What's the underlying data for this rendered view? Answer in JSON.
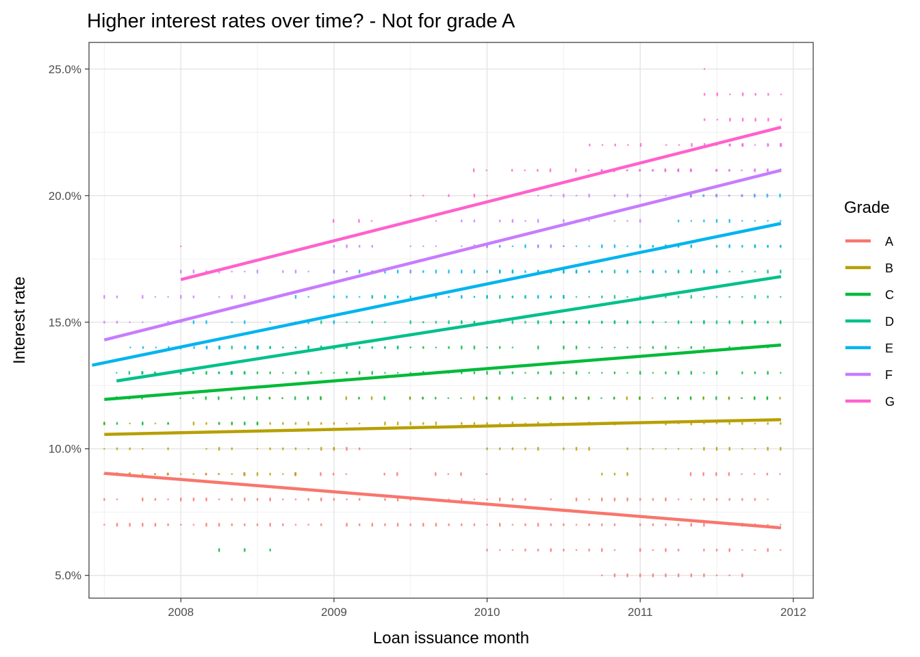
{
  "chart_data": {
    "type": "scatter",
    "title": "Higher interest rates over time? - Not for grade A",
    "xlabel": "Loan issuance month",
    "ylabel": "Interest rate",
    "xlim": [
      2007.4,
      2012.13
    ],
    "ylim": [
      0.041,
      0.2605
    ],
    "x_ticks": [
      {
        "value": 2008,
        "label": "2008"
      },
      {
        "value": 2009,
        "label": "2009"
      },
      {
        "value": 2010,
        "label": "2010"
      },
      {
        "value": 2011,
        "label": "2011"
      },
      {
        "value": 2012,
        "label": "2012"
      }
    ],
    "y_ticks": [
      {
        "value": 0.05,
        "label": "5.0%"
      },
      {
        "value": 0.1,
        "label": "10.0%"
      },
      {
        "value": 0.15,
        "label": "15.0%"
      },
      {
        "value": 0.2,
        "label": "20.0%"
      },
      {
        "value": 0.25,
        "label": "25.0%"
      }
    ],
    "grid": true,
    "legend": {
      "title": "Grade",
      "position": "right"
    },
    "series": [
      {
        "name": "A",
        "color": "#F8766D",
        "trend": {
          "x": [
            2007.5,
            2011.92
          ],
          "y": [
            0.0903,
            0.0688
          ]
        },
        "point_bands": [
          {
            "y": 0.07,
            "x_start": 2007.5,
            "x_end": 2011.92,
            "density": 0.95
          },
          {
            "y": 0.08,
            "x_start": 2007.5,
            "x_end": 2011.92,
            "density": 0.85
          },
          {
            "y": 0.09,
            "x_start": 2007.58,
            "x_end": 2010.0,
            "density": 0.7
          },
          {
            "y": 0.09,
            "x_start": 2011.33,
            "x_end": 2011.92,
            "density": 0.9
          },
          {
            "y": 0.06,
            "x_start": 2010.0,
            "x_end": 2011.92,
            "density": 0.95
          },
          {
            "y": 0.05,
            "x_start": 2010.75,
            "x_end": 2011.67,
            "density": 1.0
          },
          {
            "y": 0.1,
            "x_start": 2009.0,
            "x_end": 2009.5,
            "density": 0.6
          }
        ]
      },
      {
        "name": "B",
        "color": "#B79F00",
        "trend": {
          "x": [
            2007.5,
            2011.92
          ],
          "y": [
            0.1057,
            0.1115
          ]
        },
        "point_bands": [
          {
            "y": 0.09,
            "x_start": 2007.5,
            "x_end": 2008.75,
            "density": 0.9
          },
          {
            "y": 0.09,
            "x_start": 2010.75,
            "x_end": 2010.92,
            "density": 1.0
          },
          {
            "y": 0.1,
            "x_start": 2007.5,
            "x_end": 2009.0,
            "density": 0.8
          },
          {
            "y": 0.1,
            "x_start": 2010.0,
            "x_end": 2011.92,
            "density": 0.95
          },
          {
            "y": 0.11,
            "x_start": 2007.5,
            "x_end": 2011.92,
            "density": 0.9
          },
          {
            "y": 0.12,
            "x_start": 2008.58,
            "x_end": 2010.08,
            "density": 0.8
          },
          {
            "y": 0.12,
            "x_start": 2010.33,
            "x_end": 2011.92,
            "density": 0.9
          }
        ]
      },
      {
        "name": "C",
        "color": "#00BA38",
        "trend": {
          "x": [
            2007.5,
            2011.92
          ],
          "y": [
            0.1195,
            0.141
          ]
        },
        "point_bands": [
          {
            "y": 0.11,
            "x_start": 2007.5,
            "x_end": 2008.5,
            "density": 0.7
          },
          {
            "y": 0.12,
            "x_start": 2007.58,
            "x_end": 2011.92,
            "density": 0.8
          },
          {
            "y": 0.13,
            "x_start": 2007.75,
            "x_end": 2011.92,
            "density": 0.95
          },
          {
            "y": 0.14,
            "x_start": 2008.5,
            "x_end": 2011.92,
            "density": 0.95
          },
          {
            "y": 0.15,
            "x_start": 2009.5,
            "x_end": 2011.92,
            "density": 0.8
          },
          {
            "y": 0.06,
            "x_start": 2008.0,
            "x_end": 2008.75,
            "density": 0.3
          }
        ]
      },
      {
        "name": "D",
        "color": "#00C08B",
        "trend": {
          "x": [
            2007.58,
            2011.92
          ],
          "y": [
            0.1268,
            0.168
          ]
        },
        "point_bands": [
          {
            "y": 0.13,
            "x_start": 2007.58,
            "x_end": 2008.5,
            "density": 0.7
          },
          {
            "y": 0.14,
            "x_start": 2008.0,
            "x_end": 2009.5,
            "density": 0.8
          },
          {
            "y": 0.15,
            "x_start": 2008.75,
            "x_end": 2011.92,
            "density": 0.95
          },
          {
            "y": 0.16,
            "x_start": 2009.25,
            "x_end": 2011.92,
            "density": 0.95
          },
          {
            "y": 0.17,
            "x_start": 2010.0,
            "x_end": 2011.92,
            "density": 0.9
          },
          {
            "y": 0.18,
            "x_start": 2011.0,
            "x_end": 2011.92,
            "density": 0.9
          }
        ]
      },
      {
        "name": "E",
        "color": "#00B4EF",
        "trend": {
          "x": [
            2007.42,
            2011.92
          ],
          "y": [
            0.133,
            0.189
          ]
        },
        "point_bands": [
          {
            "y": 0.14,
            "x_start": 2007.67,
            "x_end": 2008.5,
            "density": 0.8
          },
          {
            "y": 0.15,
            "x_start": 2008.0,
            "x_end": 2009.0,
            "density": 0.8
          },
          {
            "y": 0.16,
            "x_start": 2008.75,
            "x_end": 2010.5,
            "density": 0.9
          },
          {
            "y": 0.17,
            "x_start": 2009.0,
            "x_end": 2011.5,
            "density": 0.9
          },
          {
            "y": 0.18,
            "x_start": 2010.0,
            "x_end": 2011.92,
            "density": 0.9
          },
          {
            "y": 0.19,
            "x_start": 2011.25,
            "x_end": 2011.92,
            "density": 1.0
          },
          {
            "y": 0.2,
            "x_start": 2011.33,
            "x_end": 2011.92,
            "density": 1.0
          }
        ]
      },
      {
        "name": "F",
        "color": "#C77CFF",
        "trend": {
          "x": [
            2007.5,
            2011.92
          ],
          "y": [
            0.143,
            0.21
          ]
        },
        "point_bands": [
          {
            "y": 0.15,
            "x_start": 2007.5,
            "x_end": 2008.0,
            "density": 0.6
          },
          {
            "y": 0.16,
            "x_start": 2007.5,
            "x_end": 2008.5,
            "density": 0.5
          },
          {
            "y": 0.17,
            "x_start": 2008.0,
            "x_end": 2009.5,
            "density": 0.6
          },
          {
            "y": 0.18,
            "x_start": 2009.0,
            "x_end": 2010.5,
            "density": 0.8
          },
          {
            "y": 0.19,
            "x_start": 2009.5,
            "x_end": 2011.0,
            "density": 0.8
          },
          {
            "y": 0.2,
            "x_start": 2010.25,
            "x_end": 2011.92,
            "density": 0.8
          },
          {
            "y": 0.21,
            "x_start": 2010.75,
            "x_end": 2011.92,
            "density": 0.9
          },
          {
            "y": 0.22,
            "x_start": 2011.5,
            "x_end": 2011.92,
            "density": 1.0
          }
        ]
      },
      {
        "name": "G",
        "color": "#FF61CC",
        "trend": {
          "x": [
            2008.0,
            2011.92
          ],
          "y": [
            0.1668,
            0.227
          ]
        },
        "point_bands": [
          {
            "y": 0.18,
            "x_start": 2008.0,
            "x_end": 2008.0,
            "density": 1.0
          },
          {
            "y": 0.19,
            "x_start": 2008.83,
            "x_end": 2009.42,
            "density": 0.5
          },
          {
            "y": 0.2,
            "x_start": 2009.5,
            "x_end": 2010.08,
            "density": 0.7
          },
          {
            "y": 0.21,
            "x_start": 2009.83,
            "x_end": 2011.92,
            "density": 0.8
          },
          {
            "y": 0.22,
            "x_start": 2010.67,
            "x_end": 2011.92,
            "density": 0.8
          },
          {
            "y": 0.23,
            "x_start": 2011.42,
            "x_end": 2011.92,
            "density": 1.0
          },
          {
            "y": 0.24,
            "x_start": 2011.42,
            "x_end": 2011.92,
            "density": 1.0
          },
          {
            "y": 0.25,
            "x_start": 2011.42,
            "x_end": 2011.42,
            "density": 1.0
          }
        ]
      }
    ]
  }
}
